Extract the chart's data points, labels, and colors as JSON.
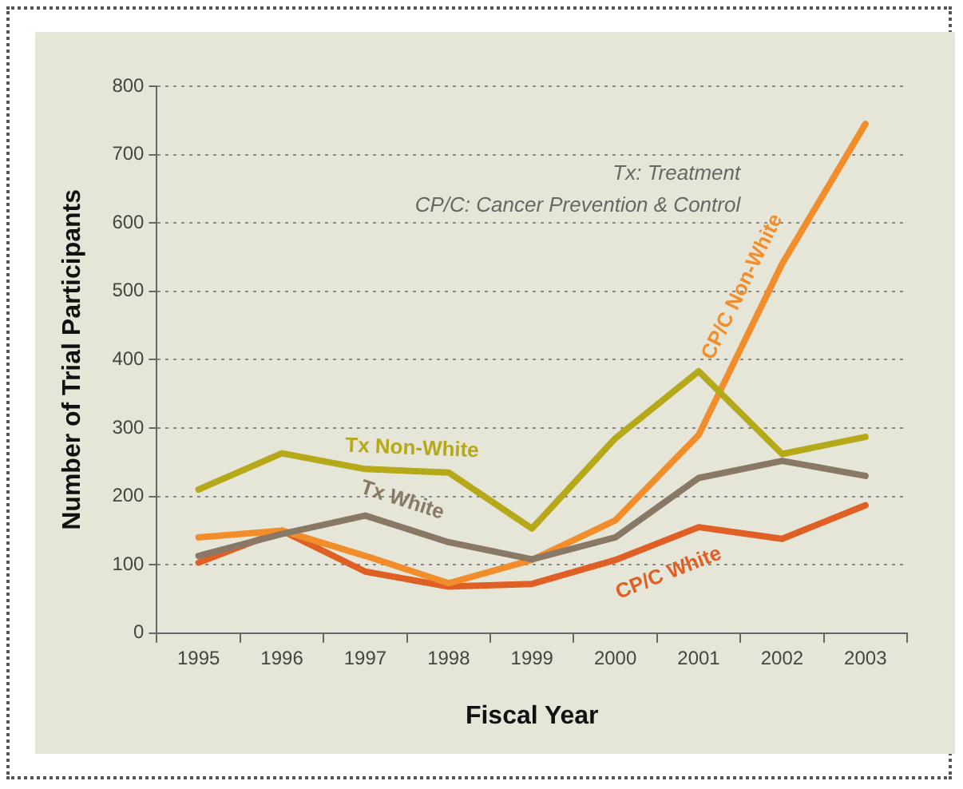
{
  "chart_data": {
    "type": "line",
    "xlabel": "Fiscal Year",
    "ylabel": "Number of Trial Participants",
    "categories": [
      "1995",
      "1996",
      "1997",
      "1998",
      "1999",
      "2000",
      "2001",
      "2002",
      "2003"
    ],
    "series": [
      {
        "name": "Tx Non-White",
        "color": "#b5a819",
        "values": [
          210,
          263,
          240,
          235,
          153,
          285,
          383,
          262,
          287
        ]
      },
      {
        "name": "Tx White",
        "color": "#8a7866",
        "values": [
          113,
          145,
          172,
          133,
          108,
          140,
          227,
          252,
          230
        ]
      },
      {
        "name": "CP/C Non-White",
        "color": "#f18e2b",
        "values": [
          140,
          150,
          113,
          73,
          107,
          165,
          290,
          540,
          745
        ]
      },
      {
        "name": "CP/C White",
        "color": "#e05f25",
        "values": [
          103,
          150,
          90,
          68,
          72,
          107,
          155,
          138,
          187
        ]
      }
    ],
    "ylim": [
      0,
      800
    ],
    "yticks": [
      0,
      100,
      200,
      300,
      400,
      500,
      600,
      700,
      800
    ],
    "grid": "y",
    "legend": false,
    "marker": "none",
    "line_style": "solid",
    "annotations": [
      "Tx: Treatment",
      "CP/C: Cancer Prevention & Control"
    ]
  }
}
